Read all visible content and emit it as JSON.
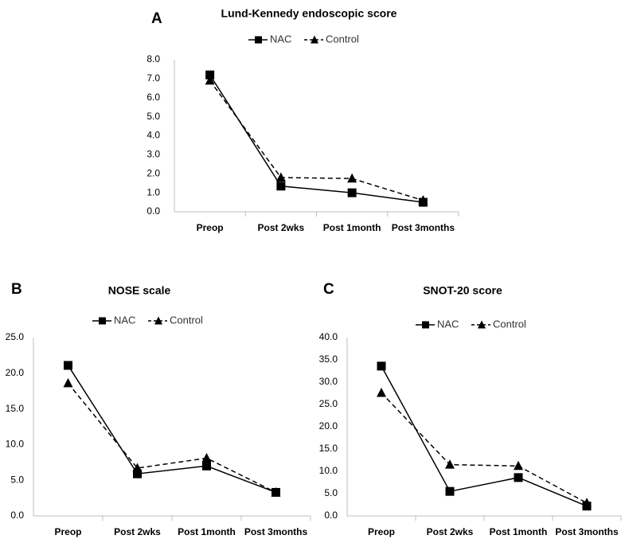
{
  "chart_data": [
    {
      "type": "line",
      "panel_label": "A",
      "title": "Lund-Kennedy endoscopic score",
      "categories": [
        "Preop",
        "Post 2wks",
        "Post 1month",
        "Post 3months"
      ],
      "series": [
        {
          "name": "NAC",
          "marker": "square",
          "dash": "solid",
          "values": [
            7.2,
            1.35,
            1.0,
            0.5
          ]
        },
        {
          "name": "Control",
          "marker": "triangle",
          "dash": "dashed",
          "values": [
            6.9,
            1.8,
            1.75,
            0.6
          ]
        }
      ],
      "ylim": [
        0,
        8
      ],
      "yticks": [
        "0.0",
        "1.0",
        "2.0",
        "3.0",
        "4.0",
        "5.0",
        "6.0",
        "7.0",
        "8.0"
      ],
      "legend": "top-center",
      "grid": false
    },
    {
      "type": "line",
      "panel_label": "B",
      "title": "NOSE scale",
      "categories": [
        "Preop",
        "Post 2wks",
        "Post 1month",
        "Post 3months"
      ],
      "series": [
        {
          "name": "NAC",
          "marker": "square",
          "dash": "solid",
          "values": [
            21.1,
            5.9,
            7.0,
            3.3
          ]
        },
        {
          "name": "Control",
          "marker": "triangle",
          "dash": "dashed",
          "values": [
            18.6,
            6.7,
            8.1,
            3.3
          ]
        }
      ],
      "ylim": [
        0,
        25
      ],
      "yticks": [
        "0.0",
        "5.0",
        "10.0",
        "15.0",
        "20.0",
        "25.0"
      ],
      "legend": "top-center",
      "grid": false
    },
    {
      "type": "line",
      "panel_label": "C",
      "title": "SNOT-20 score",
      "categories": [
        "Preop",
        "Post 2wks",
        "Post 1month",
        "Post 3months"
      ],
      "series": [
        {
          "name": "NAC",
          "marker": "square",
          "dash": "solid",
          "values": [
            33.6,
            5.5,
            8.6,
            2.2
          ]
        },
        {
          "name": "Control",
          "marker": "triangle",
          "dash": "dashed",
          "values": [
            27.6,
            11.5,
            11.2,
            2.9
          ]
        }
      ],
      "ylim": [
        0,
        40
      ],
      "yticks": [
        "0.0",
        "5.0",
        "10.0",
        "15.0",
        "20.0",
        "25.0",
        "30.0",
        "35.0",
        "40.0"
      ],
      "legend": "top-center",
      "grid": false
    }
  ]
}
